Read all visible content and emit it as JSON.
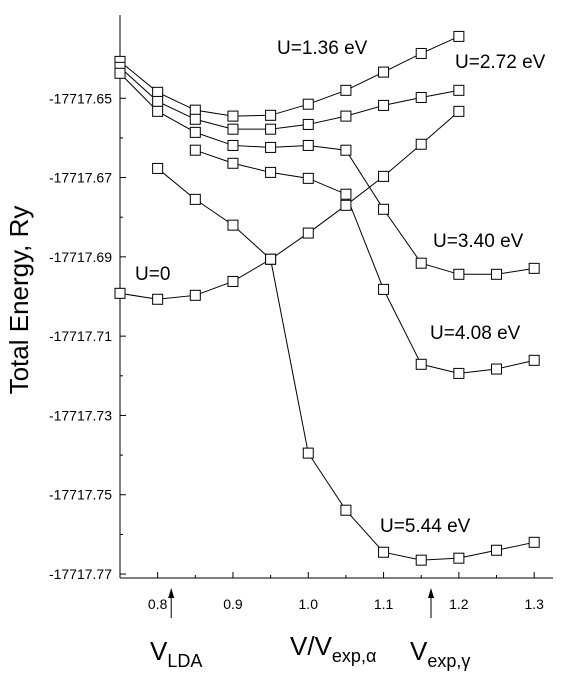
{
  "chart_data": {
    "type": "line",
    "y_label": "Total Energy, Ry",
    "x_label": {
      "text": "V/V",
      "sub": "exp,α"
    },
    "markers": [
      {
        "text": "V",
        "sub": "LDA",
        "x": 0.818
      },
      {
        "text": "V",
        "sub": "exp,γ",
        "x": 1.163
      }
    ],
    "xlim": [
      0.75,
      1.325
    ],
    "ylim": [
      -17717.771,
      -17717.629
    ],
    "xticks": [
      0.8,
      0.9,
      {
        "value": 1.0,
        "label": "1.0"
      },
      1.1,
      1.2,
      1.3
    ],
    "yticks": [
      -17717.65,
      -17717.67,
      -17717.69,
      -17717.71,
      -17717.73,
      -17717.75,
      -17717.77
    ],
    "color": "#000000",
    "series": [
      {
        "name": "U=1.36 eV",
        "x": [
          0.75,
          0.8,
          0.85,
          0.9,
          0.95,
          1.0,
          1.05,
          1.1,
          1.15,
          1.2
        ],
        "values": [
          -17717.6407,
          -17717.6485,
          -17717.653,
          -17717.6545,
          -17717.6543,
          -17717.6515,
          -17717.648,
          -17717.6434,
          -17717.6387,
          -17717.6344
        ]
      },
      {
        "name": "U=2.72 eV",
        "x": [
          0.75,
          0.8,
          0.85,
          0.9,
          0.95,
          1.0,
          1.05,
          1.1,
          1.15,
          1.2
        ],
        "values": [
          -17717.6422,
          -17717.6508,
          -17717.6553,
          -17717.6578,
          -17717.6578,
          -17717.6566,
          -17717.6545,
          -17717.6518,
          -17717.6498,
          -17717.648
        ]
      },
      {
        "name": "U=3.40 eV",
        "x": [
          0.75,
          0.8,
          0.85,
          0.9,
          0.95,
          1.0,
          1.05,
          1.1,
          1.15,
          1.2,
          1.25,
          1.3
        ],
        "values": [
          -17717.6437,
          -17717.6533,
          -17717.6586,
          -17717.6619,
          -17717.6624,
          -17717.6619,
          -17717.6631,
          -17717.678,
          -17717.6916,
          -17717.6944,
          -17717.6944,
          -17717.6929
        ]
      },
      {
        "name": "U=4.08 eV",
        "x": [
          0.85,
          0.9,
          0.95,
          1.0,
          1.05,
          1.1,
          1.15,
          1.2,
          1.25,
          1.3
        ],
        "values": [
          -17717.6631,
          -17717.6664,
          -17717.6687,
          -17717.6702,
          -17717.6742,
          -17717.6982,
          -17717.7171,
          -17717.7194,
          -17717.7183,
          -17717.7161
        ]
      },
      {
        "name": "U=5.44 eV",
        "x": [
          0.8,
          0.85,
          0.9,
          0.95,
          1.0,
          1.05,
          1.1,
          1.15,
          1.2,
          1.25,
          1.3
        ],
        "values": [
          -17717.6677,
          -17717.6755,
          -17717.682,
          -17717.6906,
          -17717.7395,
          -17717.7539,
          -17717.7645,
          -17717.7665,
          -17717.766,
          -17717.764,
          -17717.762
        ]
      },
      {
        "name": "U=0",
        "x": [
          0.75,
          0.8,
          0.85,
          0.9,
          0.95,
          1.0,
          1.05,
          1.1,
          1.15,
          1.2
        ],
        "values": [
          -17717.6992,
          -17717.7007,
          -17717.6997,
          -17717.6962,
          -17717.6906,
          -17717.684,
          -17717.677,
          -17717.6697,
          -17717.6616,
          -17717.6533
        ]
      }
    ]
  }
}
